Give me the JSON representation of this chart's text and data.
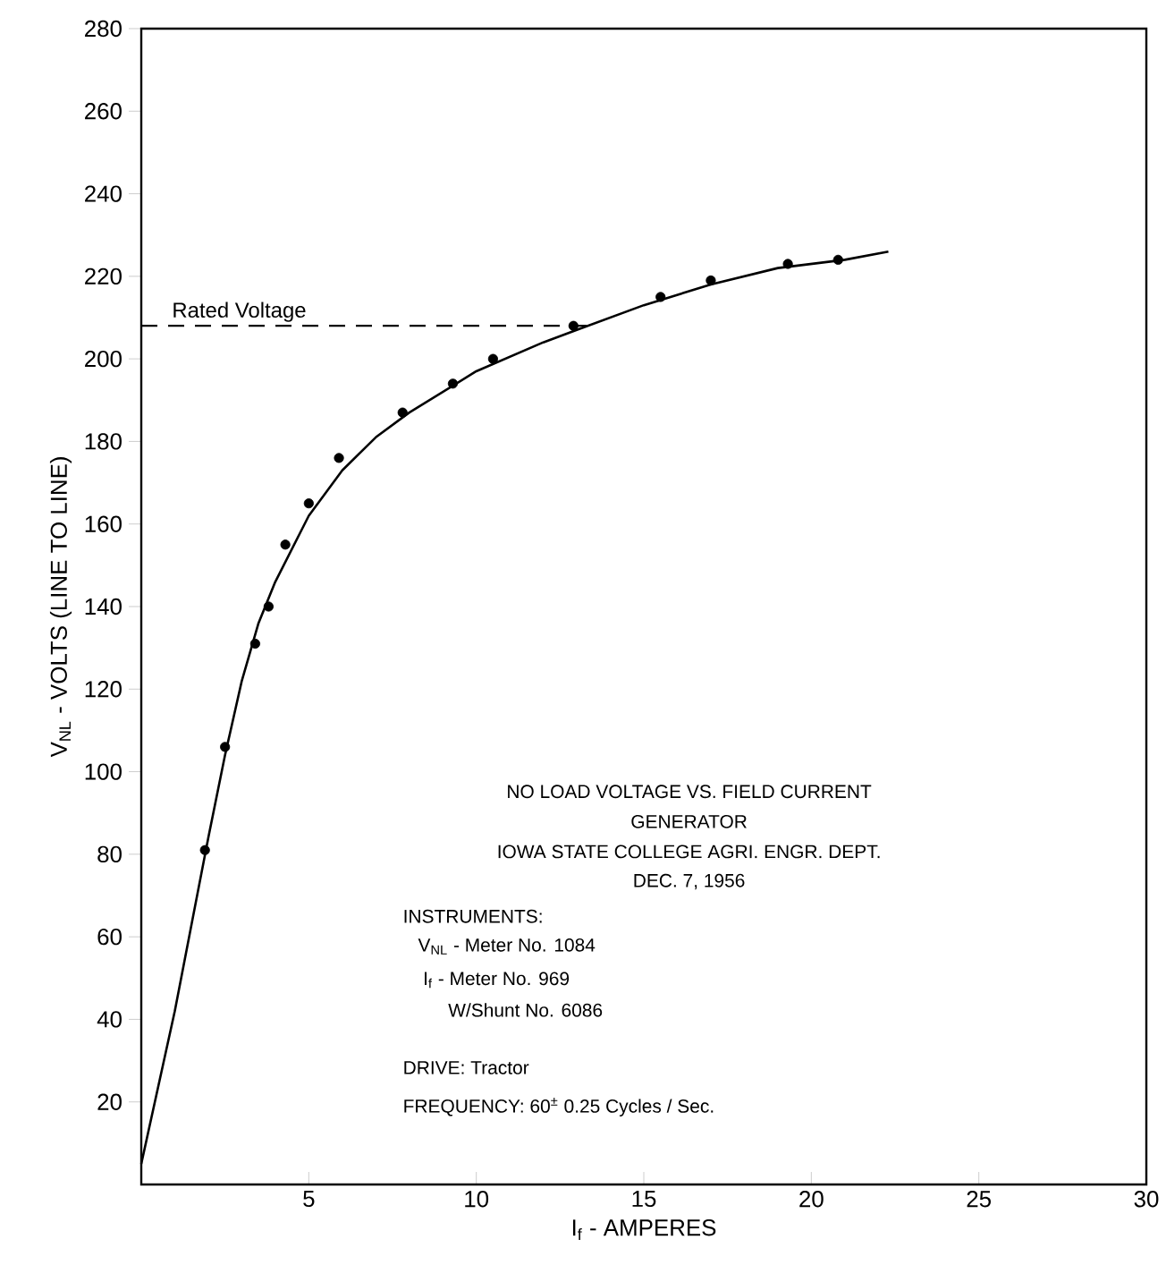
{
  "chart_data": {
    "type": "scatter",
    "xlabel": "I$_{f}$ - AMPERES",
    "ylabel": "V$_{NL}$ - VOLTS (LINE TO LINE)",
    "xlim": [
      0,
      30
    ],
    "ylim": [
      0,
      280
    ],
    "xticks": [
      5,
      10,
      15,
      20,
      25,
      30
    ],
    "yticks": [
      20,
      40,
      60,
      80,
      100,
      120,
      140,
      160,
      180,
      200,
      220,
      240,
      260,
      280
    ],
    "series": [
      {
        "color": "#000000",
        "marker": "circle",
        "x": [
          1.9,
          2.5,
          3.4,
          3.8,
          4.3,
          5.0,
          5.9,
          7.8,
          9.3,
          10.5,
          12.9,
          15.5,
          17.0,
          19.3,
          20.8
        ],
        "values": [
          81,
          106,
          131,
          140,
          155,
          165,
          176,
          187,
          194,
          200,
          208,
          215,
          219,
          223,
          224
        ]
      },
      {
        "type": "line",
        "color": "#000000",
        "line_style": "solid",
        "x": [
          0,
          1,
          2,
          2.5,
          3,
          3.5,
          4,
          5,
          6,
          7,
          8,
          10,
          12,
          13,
          15,
          17,
          19,
          21,
          22.3
        ],
        "values": [
          5,
          42,
          84,
          104,
          122,
          136,
          146,
          162,
          173,
          181,
          187,
          197,
          204,
          207,
          213,
          218,
          222,
          224,
          226
        ]
      }
    ],
    "ref_lines": [
      {
        "axis": "y",
        "value": 208,
        "label": "Rated Voltage",
        "line_style": "dashed",
        "color": "#000000"
      }
    ],
    "annotations": [
      "NO LOAD VOLTAGE VS. FIELD CURRENT",
      "GENERATOR",
      "IOWA STATE COLLEGE  AGRI. ENGR. DEPT.",
      "DEC. 7, 1956",
      "INSTRUMENTS:",
      "V$_{NL}$ - Meter No. 1084",
      "I$_{f}$ - Meter No. 969",
      "W/Shunt No. 6086",
      "DRIVE: Tractor",
      "FREQUENCY: 60$^{±}$ 0.25 Cycles / Sec."
    ]
  }
}
